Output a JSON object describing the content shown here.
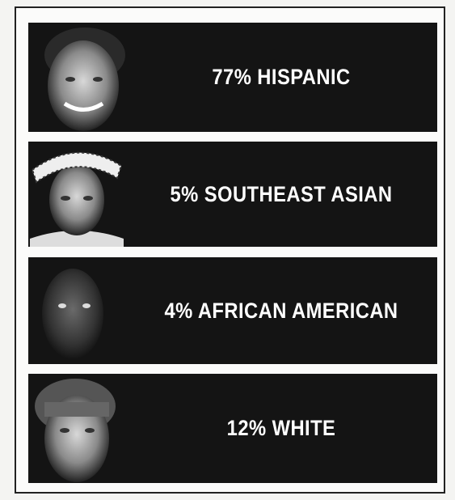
{
  "rows": [
    {
      "label": "77% HISPANIC"
    },
    {
      "label": "5% SOUTHEAST ASIAN"
    },
    {
      "label": "4% AFRICAN AMERICAN"
    },
    {
      "label": "12% WHITE"
    }
  ]
}
